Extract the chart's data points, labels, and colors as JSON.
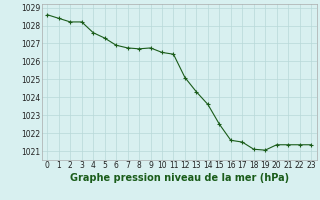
{
  "hours": [
    0,
    1,
    2,
    3,
    4,
    5,
    6,
    7,
    8,
    9,
    10,
    11,
    12,
    13,
    14,
    15,
    16,
    17,
    18,
    19,
    20,
    21,
    22,
    23
  ],
  "pressure": [
    1028.6,
    1028.4,
    1028.2,
    1028.2,
    1027.6,
    1027.3,
    1026.9,
    1026.75,
    1026.7,
    1026.75,
    1026.5,
    1026.4,
    1025.1,
    1024.3,
    1023.6,
    1022.5,
    1021.6,
    1021.5,
    1021.1,
    1021.05,
    1021.35,
    1021.35,
    1021.35,
    1021.35
  ],
  "line_color": "#1a5c1a",
  "marker": "+",
  "bg_color": "#d8f0f0",
  "grid_color": "#b8d8d8",
  "xlabel": "Graphe pression niveau de la mer (hPa)",
  "xlabel_fontsize": 7,
  "xlim": [
    -0.5,
    23.5
  ],
  "ylim": [
    1020.5,
    1029.2
  ],
  "yticks": [
    1021,
    1022,
    1023,
    1024,
    1025,
    1026,
    1027,
    1028,
    1029
  ],
  "xticks": [
    0,
    1,
    2,
    3,
    4,
    5,
    6,
    7,
    8,
    9,
    10,
    11,
    12,
    13,
    14,
    15,
    16,
    17,
    18,
    19,
    20,
    21,
    22,
    23
  ],
  "tick_fontsize": 5.5
}
